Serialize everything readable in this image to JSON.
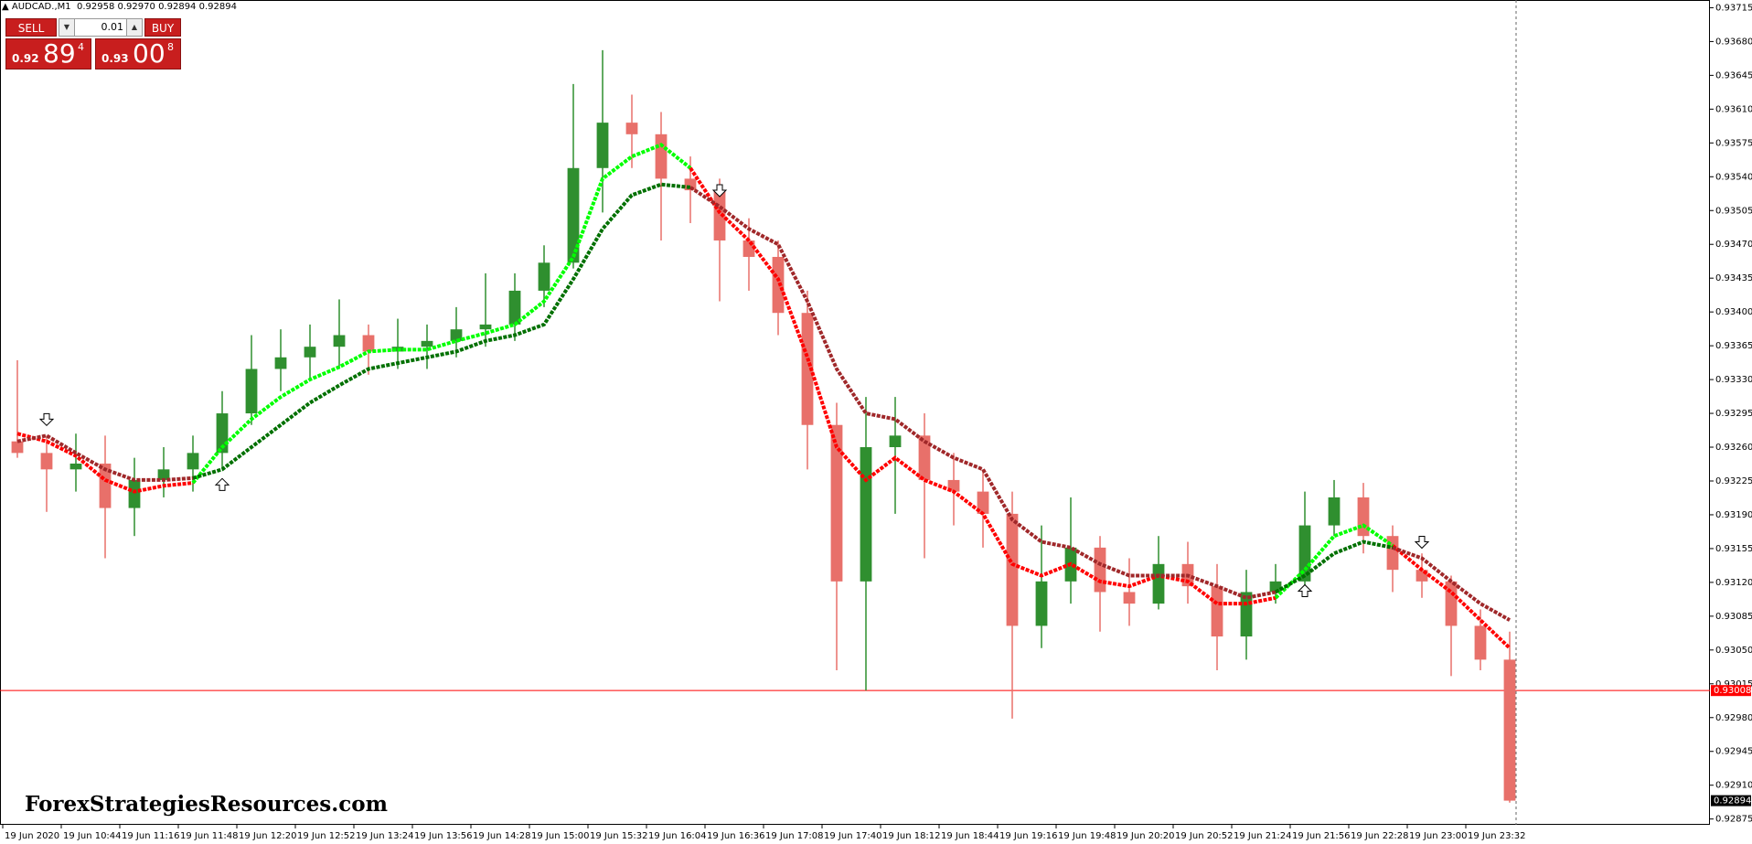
{
  "header": {
    "symbol": "AUDCAD.,M1",
    "ohlc": [
      "0.92958",
      "0.92970",
      "0.92894",
      "0.92894"
    ]
  },
  "trade_panel": {
    "sell_label": "SELL",
    "buy_label": "BUY",
    "lot": "0.01",
    "sell": {
      "small": "0.92",
      "big": "89",
      "sup": "4"
    },
    "buy": {
      "small": "0.93",
      "big": "00",
      "sup": "8"
    }
  },
  "watermark": "ForexStrategiesResources.com",
  "chart_data": {
    "type": "candlestick",
    "categories": [
      "19 Jun 2020",
      null,
      "19 Jun 10:44",
      null,
      "19 Jun 11:16",
      null,
      "19 Jun 11:48",
      null,
      "19 Jun 12:20",
      null,
      "19 Jun 12:52",
      null,
      "19 Jun 13:24",
      null,
      "19 Jun 13:56",
      null,
      "19 Jun 14:28",
      null,
      "19 Jun 15:00",
      null,
      "19 Jun 15:32",
      null,
      "19 Jun 16:04",
      null,
      "19 Jun 16:36",
      null,
      "19 Jun 17:08",
      null,
      "19 Jun 17:40",
      null,
      "19 Jun 18:12",
      null,
      "19 Jun 18:44",
      null,
      "19 Jun 19:16",
      null,
      "19 Jun 19:48",
      null,
      "19 Jun 20:20",
      null,
      "19 Jun 20:52",
      null,
      "19 Jun 21:24",
      null,
      "19 Jun 21:56",
      null,
      "19 Jun 22:28",
      null,
      "19 Jun 23:00",
      null,
      "19 Jun 23:32",
      null
    ],
    "open": [
      0.93266,
      0.93254,
      0.93237,
      0.93243,
      0.93197,
      0.93226,
      0.93237,
      0.93254,
      0.93295,
      0.93341,
      0.93353,
      0.93364,
      0.93376,
      0.93359,
      0.93364,
      0.9337,
      0.93382,
      0.93387,
      0.93422,
      0.93451,
      0.93549,
      0.93596,
      0.93584,
      0.93538,
      0.93526,
      0.93474,
      0.93457,
      0.93399,
      0.93283,
      0.93121,
      0.9326,
      0.93272,
      0.93226,
      0.93214,
      0.93191,
      0.93075,
      0.93121,
      0.93156,
      0.9311,
      0.93098,
      0.93139,
      0.93116,
      0.93064,
      0.9311,
      0.93121,
      0.93179,
      0.93208,
      0.93168,
      0.93133,
      0.93121,
      0.93075,
      0.9304
    ],
    "high": [
      0.9335,
      0.93272,
      0.93274,
      0.93272,
      0.93249,
      0.9326,
      0.93272,
      0.93318,
      0.93376,
      0.93382,
      0.93387,
      0.93413,
      0.93387,
      0.93393,
      0.93387,
      0.93405,
      0.9344,
      0.9344,
      0.93469,
      0.93636,
      0.93671,
      0.93625,
      0.93607,
      0.93561,
      0.93538,
      0.93497,
      0.93474,
      0.93422,
      0.93306,
      0.93312,
      0.93312,
      0.93295,
      0.93254,
      0.93237,
      0.93214,
      0.93179,
      0.93208,
      0.93168,
      0.93145,
      0.93168,
      0.93162,
      0.93139,
      0.93133,
      0.93139,
      0.93214,
      0.93226,
      0.93223,
      0.93179,
      0.9315,
      0.93127,
      0.93092,
      0.93069
    ],
    "low": [
      0.93249,
      0.93193,
      0.93214,
      0.93145,
      0.93168,
      0.93208,
      0.93214,
      0.93237,
      0.93283,
      0.93318,
      0.9333,
      0.93341,
      0.93335,
      0.93341,
      0.93341,
      0.93353,
      0.93364,
      0.9337,
      0.93405,
      0.93445,
      0.93503,
      0.93549,
      0.93474,
      0.93492,
      0.93411,
      0.93422,
      0.93376,
      0.93237,
      0.93029,
      0.93008,
      0.93191,
      0.93145,
      0.93179,
      0.93156,
      0.92979,
      0.93052,
      0.93098,
      0.93069,
      0.93075,
      0.93092,
      0.93098,
      0.93029,
      0.9304,
      0.93098,
      0.9311,
      0.93168,
      0.9315,
      0.9311,
      0.93104,
      0.93023,
      0.93029,
      0.92892
    ],
    "close": [
      0.93254,
      0.93237,
      0.93243,
      0.93197,
      0.93226,
      0.93237,
      0.93254,
      0.93295,
      0.93341,
      0.93353,
      0.93364,
      0.93376,
      0.93359,
      0.93364,
      0.9337,
      0.93382,
      0.93387,
      0.93422,
      0.93451,
      0.93549,
      0.93596,
      0.93584,
      0.93538,
      0.93526,
      0.93474,
      0.93457,
      0.93399,
      0.93283,
      0.93121,
      0.9326,
      0.93272,
      0.93226,
      0.93214,
      0.93191,
      0.93075,
      0.93121,
      0.93156,
      0.9311,
      0.93098,
      0.93139,
      0.93116,
      0.93064,
      0.9311,
      0.93121,
      0.93179,
      0.93208,
      0.93168,
      0.93133,
      0.93121,
      0.93075,
      0.9304,
      0.92894
    ],
    "bull_color": "#2f8f2f",
    "bear_color": "#e8706a",
    "fast_ma": {
      "color_up": "#00ff00",
      "color_down": "#ff0000",
      "values": [
        0.93274,
        0.93266,
        0.93251,
        0.93226,
        0.93214,
        0.9322,
        0.93223,
        0.9326,
        0.93289,
        0.93312,
        0.9333,
        0.93343,
        0.93359,
        0.93361,
        0.93361,
        0.9337,
        0.93378,
        0.93387,
        0.93411,
        0.93457,
        0.93538,
        0.93561,
        0.93573,
        0.93549,
        0.93503,
        0.93474,
        0.93434,
        0.93353,
        0.9326,
        0.93226,
        0.93249,
        0.93226,
        0.93214,
        0.93191,
        0.93139,
        0.93127,
        0.93139,
        0.93121,
        0.93116,
        0.93127,
        0.93121,
        0.93098,
        0.93098,
        0.93104,
        0.93133,
        0.93168,
        0.93179,
        0.93158,
        0.93133,
        0.9311,
        0.93081,
        0.93052
      ]
    },
    "slow_ma": {
      "color_up": "#007000",
      "color_down": "#a0282a",
      "values": [
        0.93266,
        0.93272,
        0.93254,
        0.93237,
        0.93226,
        0.93226,
        0.93228,
        0.93237,
        0.9326,
        0.93283,
        0.93306,
        0.93324,
        0.93341,
        0.93347,
        0.93353,
        0.93359,
        0.9337,
        0.93376,
        0.93387,
        0.93434,
        0.93486,
        0.93521,
        0.93532,
        0.93529,
        0.93509,
        0.93486,
        0.9347,
        0.93411,
        0.93341,
        0.93295,
        0.93289,
        0.93266,
        0.93249,
        0.93237,
        0.93185,
        0.93162,
        0.93156,
        0.93139,
        0.93127,
        0.93127,
        0.93127,
        0.93116,
        0.93104,
        0.9311,
        0.93127,
        0.9315,
        0.93162,
        0.93156,
        0.93145,
        0.93121,
        0.93098,
        0.93081
      ]
    },
    "ylim": [
      0.92869,
      0.93723
    ],
    "yticks": [
      0.93715,
      {
        "value": 0.9368,
        "label": "0.93680"
      },
      0.93645,
      {
        "value": 0.9361,
        "label": "0.93610"
      },
      0.93575,
      {
        "value": 0.9354,
        "label": "0.93540"
      },
      0.93505,
      {
        "value": 0.9347,
        "label": "0.93470"
      },
      0.93435,
      {
        "value": 0.934,
        "label": "0.93400"
      },
      0.93365,
      {
        "value": 0.9333,
        "label": "0.93330"
      },
      0.93295,
      {
        "value": 0.9326,
        "label": "0.93260"
      },
      0.93225,
      {
        "value": 0.9319,
        "label": "0.93190"
      },
      0.93155,
      {
        "value": 0.9312,
        "label": "0.93120"
      },
      0.93085,
      {
        "value": 0.9305,
        "label": "0.93050"
      },
      0.93015,
      {
        "value": 0.9298,
        "label": "0.92980"
      },
      0.92945,
      {
        "value": 0.9291,
        "label": "0.92910"
      },
      0.92875
    ],
    "hline": {
      "value": 0.93008,
      "color": "#ff0000"
    },
    "last_price": 0.92894
  }
}
